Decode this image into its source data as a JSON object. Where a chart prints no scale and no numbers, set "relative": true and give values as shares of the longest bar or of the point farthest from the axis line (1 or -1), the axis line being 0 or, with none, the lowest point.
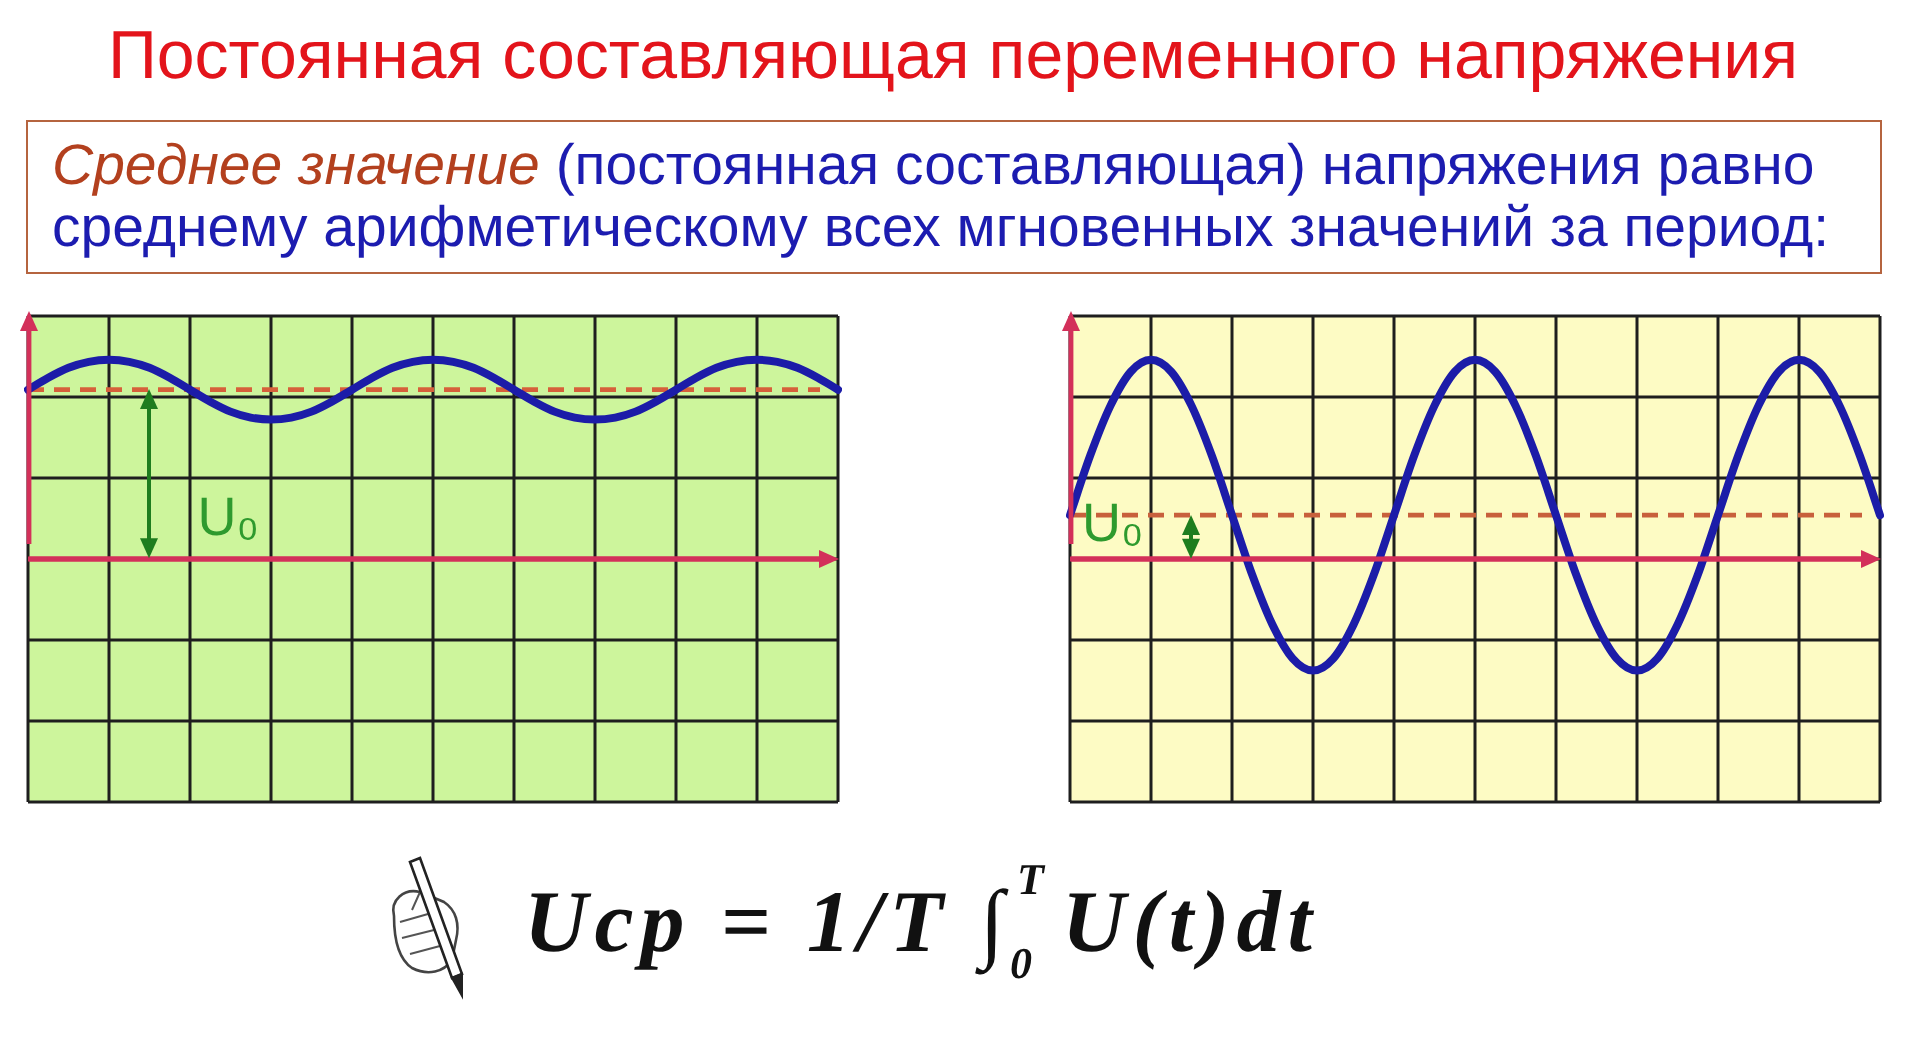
{
  "chart_data": [
    {
      "type": "other",
      "title": "Постоянная составляющая переменного напряжения",
      "annotations": [
        "Среднее значение",
        "(постоянная составляющая) напряжения равно",
        "среднему арифметическому всех мгновенных значений за период:"
      ]
    },
    {
      "type": "line",
      "relative": true,
      "grid": true,
      "tick_labels": false,
      "categories": [
        null,
        null,
        null,
        null,
        null,
        null,
        null,
        null,
        null,
        null,
        null,
        null,
        null,
        null,
        null,
        null,
        null,
        null,
        null,
        null,
        null,
        null,
        null,
        null,
        null,
        null,
        null,
        null,
        null,
        null,
        null,
        null,
        null,
        null,
        null,
        null,
        null,
        null,
        null,
        null,
        null
      ],
      "series": [
        {
          "color": "#1c1ca8",
          "values": [
            0.85,
            0.91,
            0.96,
            0.99,
            1,
            0.99,
            0.96,
            0.91,
            0.85,
            0.79,
            0.74,
            0.71,
            0.7,
            0.71,
            0.74,
            0.79,
            0.85,
            0.91,
            0.96,
            0.99,
            1,
            0.99,
            0.96,
            0.91,
            0.85,
            0.79,
            0.74,
            0.71,
            0.7,
            0.71,
            0.74,
            0.79,
            0.85,
            0.91,
            0.96,
            0.99,
            1,
            0.99,
            0.96,
            0.91,
            0.85
          ]
        }
      ],
      "ref_lines": [
        {
          "axis": "y",
          "value": 0.85,
          "label": "U₀",
          "color": "#d6603a",
          "line_style": "dashed"
        },
        {
          "axis": "y",
          "value": 0,
          "color": "#d3305a",
          "line_style": "solid"
        }
      ]
    },
    {
      "type": "line",
      "relative": true,
      "grid": true,
      "tick_labels": false,
      "categories": [
        null,
        null,
        null,
        null,
        null,
        null,
        null,
        null,
        null,
        null,
        null,
        null,
        null,
        null,
        null,
        null,
        null,
        null,
        null,
        null,
        null,
        null,
        null,
        null,
        null,
        null,
        null,
        null,
        null,
        null,
        null,
        null,
        null,
        null,
        null,
        null,
        null,
        null,
        null,
        null,
        null
      ],
      "series": [
        {
          "color": "#1c1ca8",
          "values": [
            0.22,
            0.52,
            0.77,
            0.94,
            1,
            0.94,
            0.77,
            0.52,
            0.22,
            -0.08,
            -0.33,
            -0.5,
            -0.56,
            -0.5,
            -0.33,
            -0.08,
            0.22,
            0.52,
            0.77,
            0.94,
            1,
            0.94,
            0.77,
            0.52,
            0.22,
            -0.08,
            -0.33,
            -0.5,
            -0.56,
            -0.5,
            -0.33,
            -0.08,
            0.22,
            0.52,
            0.77,
            0.94,
            1,
            0.94,
            0.77,
            0.52,
            0.22
          ]
        }
      ],
      "ref_lines": [
        {
          "axis": "y",
          "value": 0.22,
          "label": "U₀",
          "color": "#c8603c",
          "line_style": "dashed"
        },
        {
          "axis": "y",
          "value": 0,
          "color": "#d3305a",
          "line_style": "solid"
        }
      ]
    },
    {
      "type": "other",
      "annotations": [
        "Ucp = 1/T ∫$_{0}$$^{T}$U(t)dt"
      ]
    }
  ]
}
